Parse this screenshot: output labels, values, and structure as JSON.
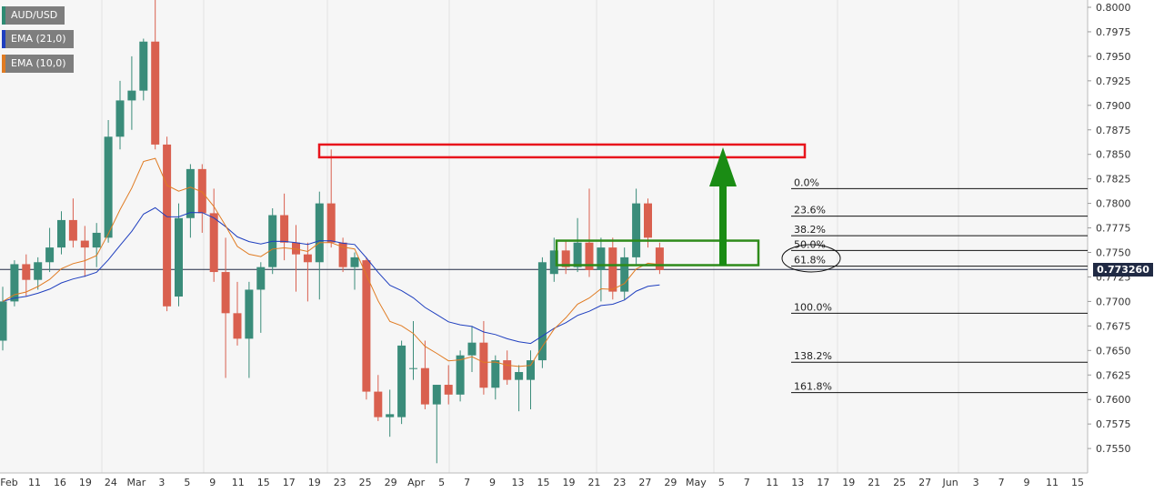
{
  "legend": [
    {
      "label": "AUD/USD",
      "color": "#2e8b73"
    },
    {
      "label": "EMA (21,0)",
      "color": "#1f3fbf"
    },
    {
      "label": "EMA (10,0)",
      "color": "#e07b22"
    }
  ],
  "current_price": "0.773260",
  "colors": {
    "up": "#3a8c7a",
    "down": "#d9604f",
    "ema21": "#1f3fbf",
    "ema10": "#e07b22",
    "resistance": "#e8141c",
    "range": "#2e8b1a",
    "arrow": "#1a8c14"
  },
  "chart_data": {
    "type": "candlestick",
    "ylim": [
      0.753,
      0.8005
    ],
    "y_ticks": [
      "0.8000",
      "0.7975",
      "0.7950",
      "0.7925",
      "0.7900",
      "0.7875",
      "0.7850",
      "0.7825",
      "0.7800",
      "0.7775",
      "0.7750",
      "0.7725",
      "0.7700",
      "0.7675",
      "0.7650",
      "0.7625",
      "0.7600",
      "0.7575",
      "0.7550"
    ],
    "x_tick_labels": [
      "Feb",
      "11",
      "16",
      "19",
      "24",
      "Mar",
      "3",
      "5",
      "9",
      "11",
      "15",
      "17",
      "19",
      "23",
      "25",
      "29",
      "Apr",
      "5",
      "7",
      "9",
      "13",
      "15",
      "19",
      "21",
      "23",
      "27",
      "29",
      "May",
      "5",
      "7",
      "11",
      "13",
      "17",
      "19",
      "21",
      "25",
      "27",
      "Jun",
      "3",
      "7",
      "9",
      "11",
      "15"
    ],
    "candles": [
      {
        "o": 0.766,
        "h": 0.7715,
        "l": 0.765,
        "c": 0.77
      },
      {
        "o": 0.77,
        "h": 0.7742,
        "l": 0.7695,
        "c": 0.7738
      },
      {
        "o": 0.7738,
        "h": 0.7748,
        "l": 0.7705,
        "c": 0.7722
      },
      {
        "o": 0.7722,
        "h": 0.7745,
        "l": 0.7712,
        "c": 0.774
      },
      {
        "o": 0.774,
        "h": 0.7775,
        "l": 0.773,
        "c": 0.7755
      },
      {
        "o": 0.7755,
        "h": 0.7792,
        "l": 0.7748,
        "c": 0.7783
      },
      {
        "o": 0.7783,
        "h": 0.7805,
        "l": 0.7755,
        "c": 0.7762
      },
      {
        "o": 0.7762,
        "h": 0.7777,
        "l": 0.7725,
        "c": 0.7755
      },
      {
        "o": 0.7755,
        "h": 0.778,
        "l": 0.7735,
        "c": 0.777
      },
      {
        "o": 0.7765,
        "h": 0.7885,
        "l": 0.776,
        "c": 0.7868
      },
      {
        "o": 0.7868,
        "h": 0.7925,
        "l": 0.7855,
        "c": 0.7905
      },
      {
        "o": 0.7905,
        "h": 0.795,
        "l": 0.7875,
        "c": 0.7915
      },
      {
        "o": 0.7915,
        "h": 0.7968,
        "l": 0.7905,
        "c": 0.7965
      },
      {
        "o": 0.7965,
        "h": 0.801,
        "l": 0.7855,
        "c": 0.786
      },
      {
        "o": 0.786,
        "h": 0.7868,
        "l": 0.769,
        "c": 0.7695
      },
      {
        "o": 0.7705,
        "h": 0.78,
        "l": 0.7695,
        "c": 0.7785
      },
      {
        "o": 0.7785,
        "h": 0.784,
        "l": 0.7765,
        "c": 0.7835
      },
      {
        "o": 0.7835,
        "h": 0.784,
        "l": 0.777,
        "c": 0.779
      },
      {
        "o": 0.779,
        "h": 0.7815,
        "l": 0.772,
        "c": 0.773
      },
      {
        "o": 0.773,
        "h": 0.7765,
        "l": 0.7622,
        "c": 0.7688
      },
      {
        "o": 0.7688,
        "h": 0.772,
        "l": 0.7655,
        "c": 0.7662
      },
      {
        "o": 0.7662,
        "h": 0.772,
        "l": 0.7622,
        "c": 0.7712
      },
      {
        "o": 0.7712,
        "h": 0.774,
        "l": 0.7668,
        "c": 0.7735
      },
      {
        "o": 0.7735,
        "h": 0.7795,
        "l": 0.7728,
        "c": 0.7788
      },
      {
        "o": 0.7788,
        "h": 0.781,
        "l": 0.7742,
        "c": 0.776
      },
      {
        "o": 0.776,
        "h": 0.7778,
        "l": 0.771,
        "c": 0.7748
      },
      {
        "o": 0.7748,
        "h": 0.776,
        "l": 0.77,
        "c": 0.774
      },
      {
        "o": 0.774,
        "h": 0.7812,
        "l": 0.7702,
        "c": 0.78
      },
      {
        "o": 0.78,
        "h": 0.7855,
        "l": 0.7755,
        "c": 0.776
      },
      {
        "o": 0.776,
        "h": 0.7765,
        "l": 0.773,
        "c": 0.7735
      },
      {
        "o": 0.7735,
        "h": 0.775,
        "l": 0.7712,
        "c": 0.7745
      },
      {
        "o": 0.7742,
        "h": 0.7745,
        "l": 0.76,
        "c": 0.7608
      },
      {
        "o": 0.7608,
        "h": 0.7625,
        "l": 0.7578,
        "c": 0.7582
      },
      {
        "o": 0.7582,
        "h": 0.761,
        "l": 0.7562,
        "c": 0.7585
      },
      {
        "o": 0.7582,
        "h": 0.766,
        "l": 0.7575,
        "c": 0.7655
      },
      {
        "o": 0.7632,
        "h": 0.768,
        "l": 0.762,
        "c": 0.7632
      },
      {
        "o": 0.7632,
        "h": 0.766,
        "l": 0.759,
        "c": 0.7595
      },
      {
        "o": 0.7595,
        "h": 0.7615,
        "l": 0.7535,
        "c": 0.7615
      },
      {
        "o": 0.7615,
        "h": 0.7635,
        "l": 0.7595,
        "c": 0.7605
      },
      {
        "o": 0.7605,
        "h": 0.765,
        "l": 0.7598,
        "c": 0.7645
      },
      {
        "o": 0.7645,
        "h": 0.7675,
        "l": 0.7628,
        "c": 0.7658
      },
      {
        "o": 0.7658,
        "h": 0.768,
        "l": 0.7605,
        "c": 0.7612
      },
      {
        "o": 0.7612,
        "h": 0.7645,
        "l": 0.76,
        "c": 0.764
      },
      {
        "o": 0.764,
        "h": 0.765,
        "l": 0.7615,
        "c": 0.762
      },
      {
        "o": 0.762,
        "h": 0.7635,
        "l": 0.7588,
        "c": 0.7628
      },
      {
        "o": 0.762,
        "h": 0.765,
        "l": 0.759,
        "c": 0.764
      },
      {
        "o": 0.764,
        "h": 0.7745,
        "l": 0.7632,
        "c": 0.774
      },
      {
        "o": 0.7728,
        "h": 0.7765,
        "l": 0.772,
        "c": 0.7752
      },
      {
        "o": 0.7752,
        "h": 0.7762,
        "l": 0.7728,
        "c": 0.7735
      },
      {
        "o": 0.7735,
        "h": 0.7785,
        "l": 0.773,
        "c": 0.776
      },
      {
        "o": 0.776,
        "h": 0.7815,
        "l": 0.7725,
        "c": 0.7732
      },
      {
        "o": 0.7732,
        "h": 0.7765,
        "l": 0.77,
        "c": 0.7755
      },
      {
        "o": 0.7755,
        "h": 0.7765,
        "l": 0.7702,
        "c": 0.771
      },
      {
        "o": 0.771,
        "h": 0.7755,
        "l": 0.7702,
        "c": 0.7745
      },
      {
        "o": 0.7745,
        "h": 0.7815,
        "l": 0.7738,
        "c": 0.78
      },
      {
        "o": 0.78,
        "h": 0.7805,
        "l": 0.7755,
        "c": 0.7765
      },
      {
        "o": 0.7755,
        "h": 0.776,
        "l": 0.7728,
        "c": 0.7732
      }
    ],
    "fibonacci": [
      {
        "label": "0.0%",
        "price": 0.7815
      },
      {
        "label": "23.6%",
        "price": 0.7787
      },
      {
        "label": "38.2%",
        "price": 0.7767
      },
      {
        "label": "50.0%",
        "price": 0.7752
      },
      {
        "label": "61.8%",
        "price": 0.7736
      },
      {
        "label": "100.0%",
        "price": 0.7688
      },
      {
        "label": "138.2%",
        "price": 0.7638
      },
      {
        "label": "161.8%",
        "price": 0.7607
      }
    ],
    "resistance_zone": [
      0.7847,
      0.786
    ],
    "consolidation_zone": [
      0.7737,
      0.7762
    ],
    "current_price": 0.77326
  }
}
